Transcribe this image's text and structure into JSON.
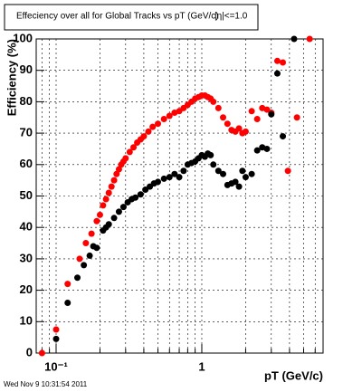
{
  "chart_data": {
    "type": "scatter",
    "title": "Effeciency over all for Global Tracks vs pT (GeV/c)",
    "annotation": "|η|<=1.0",
    "x_label": "pT (GeV/c)",
    "y_label": "Efficiency (%)",
    "footer": "Wed Nov  9 10:31:54 2011",
    "log_x": true,
    "grid": true,
    "xlim": [
      0.073,
      6.8
    ],
    "ylim": [
      0,
      100
    ],
    "xticks": [
      {
        "value": 0.1,
        "label": "10⁻¹"
      },
      1
    ],
    "xminor_ticks": [
      0.08,
      0.09,
      0.2,
      0.3,
      0.4,
      0.5,
      0.6,
      0.7,
      0.8,
      0.9,
      2,
      3,
      4,
      5,
      6
    ],
    "yticks": [
      0,
      10,
      20,
      30,
      40,
      50,
      60,
      70,
      80,
      90,
      100
    ],
    "series": [
      {
        "color": "#ff0000",
        "x": [
          0.08,
          0.1,
          0.12,
          0.145,
          0.16,
          0.175,
          0.19,
          0.2,
          0.21,
          0.22,
          0.23,
          0.24,
          0.25,
          0.26,
          0.27,
          0.28,
          0.29,
          0.3,
          0.32,
          0.34,
          0.36,
          0.38,
          0.4,
          0.43,
          0.46,
          0.5,
          0.55,
          0.6,
          0.65,
          0.7,
          0.75,
          0.8,
          0.85,
          0.9,
          0.95,
          1.0,
          1.05,
          1.1,
          1.15,
          1.2,
          1.3,
          1.4,
          1.5,
          1.6,
          1.7,
          1.8,
          1.9,
          2.0,
          2.2,
          2.4,
          2.6,
          2.8,
          3.0,
          3.3,
          3.6,
          3.9,
          4.5,
          5.5
        ],
        "values": [
          0,
          7.5,
          22,
          30,
          35,
          38,
          42,
          44,
          47,
          49,
          51,
          53,
          55,
          57,
          58.5,
          60,
          61,
          62,
          64,
          65.5,
          67,
          68,
          69,
          70.5,
          72,
          73,
          74.5,
          75.5,
          76.5,
          77,
          78,
          79,
          80,
          81,
          81.5,
          82,
          82,
          81.5,
          81,
          80,
          78,
          75,
          73,
          71,
          70.5,
          71.5,
          70,
          70.5,
          77,
          74.5,
          78,
          77.5,
          76.5,
          93,
          92.5,
          58,
          75,
          100
        ]
      },
      {
        "color": "#000000",
        "x": [
          0.1,
          0.12,
          0.14,
          0.155,
          0.17,
          0.18,
          0.19,
          0.21,
          0.22,
          0.23,
          0.25,
          0.27,
          0.29,
          0.31,
          0.33,
          0.35,
          0.38,
          0.41,
          0.44,
          0.47,
          0.5,
          0.55,
          0.6,
          0.65,
          0.7,
          0.75,
          0.8,
          0.85,
          0.9,
          0.95,
          1.0,
          1.05,
          1.1,
          1.15,
          1.2,
          1.3,
          1.4,
          1.5,
          1.6,
          1.7,
          1.8,
          1.9,
          2.0,
          2.2,
          2.4,
          2.6,
          2.8,
          3.0,
          3.3,
          3.6,
          4.3
        ],
        "values": [
          4.5,
          16,
          24,
          28,
          31,
          34,
          33.5,
          39,
          40,
          41,
          43,
          45,
          46.5,
          48,
          49,
          49.5,
          50.5,
          52,
          53,
          54,
          54.5,
          55.5,
          56,
          57,
          56,
          58,
          60,
          60.5,
          61,
          62,
          63,
          62.5,
          63.5,
          63,
          60,
          58,
          57,
          53.5,
          54,
          54.5,
          53,
          58,
          56,
          57,
          64.5,
          65.5,
          65,
          76,
          89,
          69,
          100
        ]
      }
    ]
  }
}
